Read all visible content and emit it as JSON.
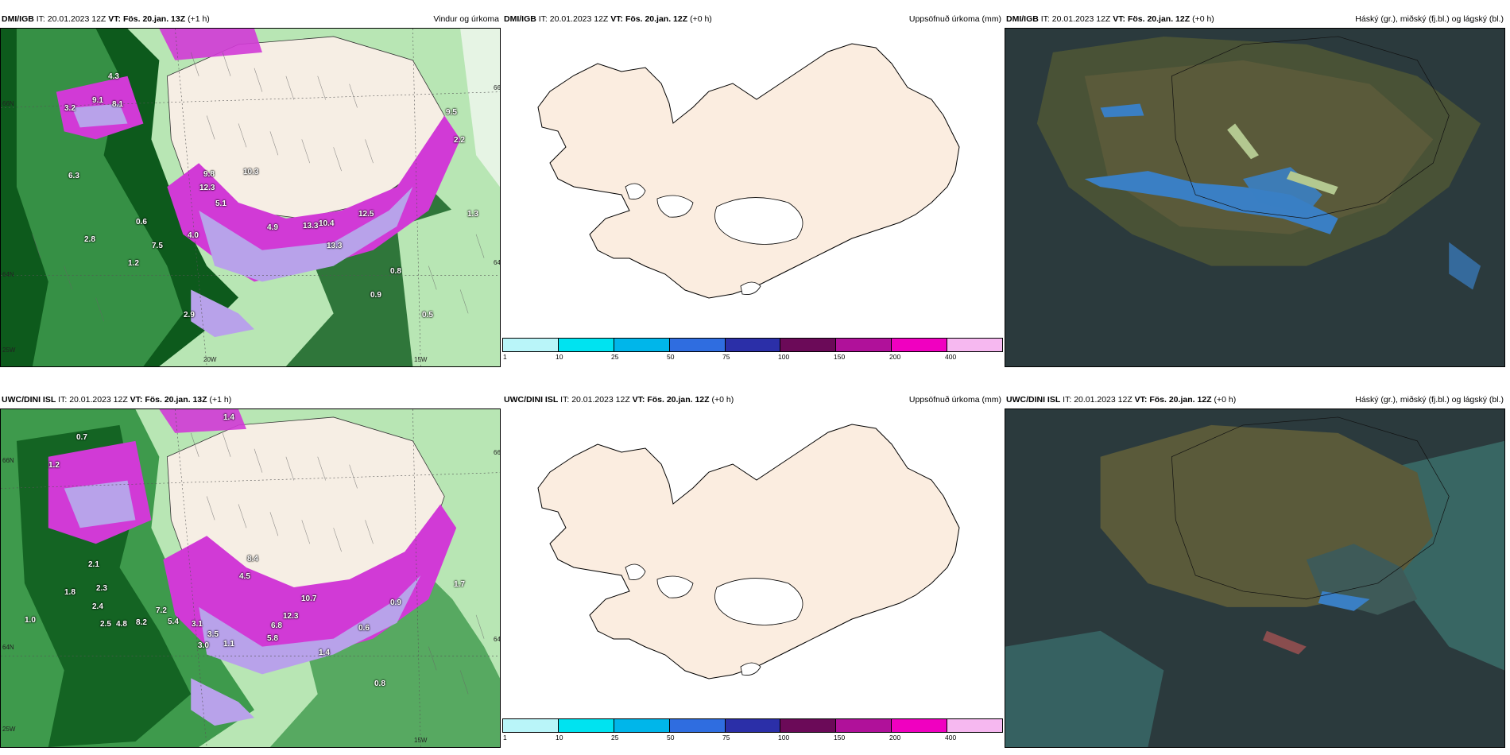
{
  "panels": {
    "top_left": {
      "model": "DMI/IGB",
      "it_label": "IT:",
      "it_value": "20.01.2023 12Z",
      "vt_label": "VT:",
      "vt_value": "Fös. 20.jan. 13Z",
      "lead": "(+1 h)",
      "title": "Vindur og úrkoma"
    },
    "top_mid": {
      "model": "DMI/IGB",
      "it_label": "IT:",
      "it_value": "20.01.2023 12Z",
      "vt_label": "VT:",
      "vt_value": "Fös. 20.jan. 12Z",
      "lead": "(+0 h)",
      "title": "Uppsöfnuð úrkoma (mm)"
    },
    "top_right": {
      "model": "DMI/IGB",
      "it_label": "IT:",
      "it_value": "20.01.2023 12Z",
      "vt_label": "VT:",
      "vt_value": "Fös. 20.jan. 12Z",
      "lead": "(+0 h)",
      "title": "Háský (gr.), miðský (fj.bl.) og lágský (bl.)"
    },
    "bottom_left": {
      "model": "UWC/DINI ISL",
      "it_label": "IT:",
      "it_value": "20.01.2023 12Z",
      "vt_label": "VT:",
      "vt_value": "Fös. 20.jan. 13Z",
      "lead": "(+1 h)",
      "title": ""
    },
    "bottom_mid": {
      "model": "UWC/DINI ISL",
      "it_label": "IT:",
      "it_value": "20.01.2023 12Z",
      "vt_label": "VT:",
      "vt_value": "Fös. 20.jan. 12Z",
      "lead": "(+0 h)",
      "title": "Uppsöfnuð úrkoma (mm)"
    },
    "bottom_right": {
      "model": "UWC/DINI ISL",
      "it_label": "IT:",
      "it_value": "20.01.2023 12Z",
      "vt_label": "VT:",
      "vt_value": "Fös. 20.jan. 12Z",
      "lead": "(+0 h)",
      "title": "Háský (gr.), miðský (fj.bl.) og lágský (bl.)"
    }
  },
  "axes": {
    "lat_66": "66N",
    "lat_64": "64N",
    "lon_25": "25W",
    "lon_20": "20W",
    "lon_15": "15W"
  },
  "legend": {
    "ticks": [
      "1",
      "10",
      "25",
      "50",
      "75",
      "100",
      "150",
      "200",
      "400"
    ],
    "colors": [
      "#b9f5f9",
      "#00e3f0",
      "#00b6ea",
      "#2f6de0",
      "#2b2fa8",
      "#6b0a58",
      "#b0119a",
      "#f000c0",
      "#f6b8f0"
    ]
  },
  "precip_labels_top": [
    "4.3",
    "9.1",
    "8.1",
    "3.2",
    "6.3",
    "9.8",
    "10.3",
    "12.3",
    "5.1",
    "4.0",
    "7.5",
    "2.8",
    "4.9",
    "13.3",
    "10.4",
    "12.5",
    "13.3",
    "9.5",
    "2.2",
    "0.6",
    "0.8",
    "0.9",
    "0.5",
    "2.9",
    "1.3",
    "1.2"
  ],
  "precip_labels_bottom": [
    "1.4",
    "0.7",
    "1.2",
    "2.1",
    "1.8",
    "2.3",
    "2.4",
    "2.5",
    "4.8",
    "8.2",
    "7.2",
    "5.4",
    "3.1",
    "3.5",
    "3.0",
    "1.1",
    "5.8",
    "6.8",
    "4.5",
    "8.4",
    "10.7",
    "12.3",
    "0.9",
    "0.6",
    "1.4",
    "0.8",
    "1.0",
    "1.7"
  ],
  "colors": {
    "land": "#f6eee4",
    "green_dark": "#0d5a1c",
    "green_mid": "#3e9a4c",
    "green_light": "#b8e6b4",
    "magenta": "#d13ad6",
    "purple_light": "#b8a2ea",
    "cloud_bg": "#2b3a3d",
    "cloud_olive": "#5a5a3a",
    "cloud_blue": "#3a7fc4"
  }
}
